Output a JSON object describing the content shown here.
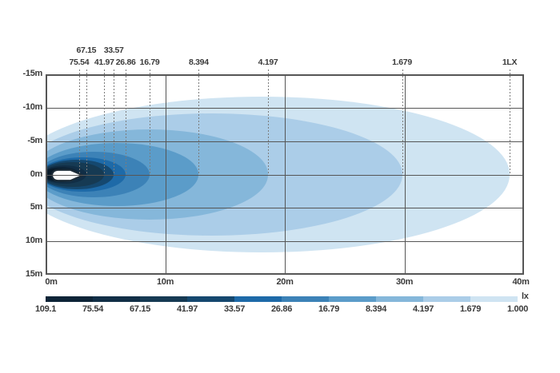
{
  "chart_data": {
    "type": "area",
    "subtype": "isolux-beam-pattern",
    "unit": "lx",
    "x_range_m": [
      0,
      40
    ],
    "y_range_m": [
      -15,
      15
    ],
    "x_tick_labels": [
      "0m",
      "10m",
      "20m",
      "30m",
      "40m"
    ],
    "y_tick_labels": [
      "-15m",
      "-10m",
      "-5m",
      "0m",
      "5m",
      "10m",
      "15m"
    ],
    "max_lux": "109.1",
    "contours_lux_to_reach_m": {
      "75.54": 2.8,
      "67.15": 3.4,
      "41.97": 4.9,
      "33.57": 5.7,
      "26.86": 6.7,
      "16.79": 8.7,
      "8.394": 12.8,
      "4.197": 18.6,
      "1.679": 29.8,
      "1.000": 38.8
    },
    "legend_values": [
      "109.1",
      "75.54",
      "67.15",
      "41.97",
      "33.57",
      "26.86",
      "16.79",
      "8.394",
      "4.197",
      "1.679",
      "1.000"
    ],
    "legend_position": "bottom",
    "grid": true
  },
  "chart": {
    "lamp_icon": "lamp-top-view-icon",
    "x_axis": {
      "ticks": [
        {
          "label": "0m",
          "m": 0
        },
        {
          "label": "10m",
          "m": 10
        },
        {
          "label": "20m",
          "m": 20
        },
        {
          "label": "30m",
          "m": 30
        },
        {
          "label": "40m",
          "m": 40
        }
      ]
    },
    "y_axis": {
      "ticks": [
        {
          "label": "-15m",
          "m": -15
        },
        {
          "label": "-10m",
          "m": -10
        },
        {
          "label": "-5m",
          "m": -5
        },
        {
          "label": "0m",
          "m": 0
        },
        {
          "label": "5m",
          "m": 5
        },
        {
          "label": "10m",
          "m": 10
        },
        {
          "label": "15m",
          "m": 15
        }
      ]
    },
    "grid": {
      "v_m": [
        10,
        20,
        30
      ],
      "h_m": [
        -10,
        -5,
        0,
        5,
        10
      ]
    },
    "markers": [
      {
        "label": "75.54",
        "row": 2,
        "distance_m": 2.8
      },
      {
        "label": "67.15",
        "row": 1,
        "distance_m": 3.4
      },
      {
        "label": "41.97",
        "row": 2,
        "distance_m": 4.9
      },
      {
        "label": "33.57",
        "row": 1,
        "distance_m": 5.7
      },
      {
        "label": "26.86",
        "row": 2,
        "distance_m": 6.7
      },
      {
        "label": "16.79",
        "row": 2,
        "distance_m": 8.7
      },
      {
        "label": "8.394",
        "row": 2,
        "distance_m": 12.8
      },
      {
        "label": "4.197",
        "row": 2,
        "distance_m": 18.6
      },
      {
        "label": "1.679",
        "row": 2,
        "distance_m": 29.8
      },
      {
        "label": "1LX",
        "row": 2,
        "distance_m": 38.8
      }
    ],
    "bands": [
      {
        "lux": "1.000",
        "color": "#cfe4f2",
        "reach_m": 38.8,
        "half_width_m": 11.6,
        "tail_m": -2.7
      },
      {
        "lux": "1.679",
        "color": "#abcde8",
        "reach_m": 29.8,
        "half_width_m": 9.1,
        "tail_m": -2.1
      },
      {
        "lux": "4.197",
        "color": "#85b7da",
        "reach_m": 18.6,
        "half_width_m": 6.7,
        "tail_m": -1.3
      },
      {
        "lux": "8.394",
        "color": "#5b9cc9",
        "reach_m": 12.8,
        "half_width_m": 4.7,
        "tail_m": -0.9
      },
      {
        "lux": "16.79",
        "color": "#3c82b7",
        "reach_m": 8.7,
        "half_width_m": 3.4,
        "tail_m": -0.6
      },
      {
        "lux": "26.86",
        "color": "#1e6aa8",
        "reach_m": 6.7,
        "half_width_m": 2.6,
        "tail_m": -0.5
      },
      {
        "lux": "33.57",
        "color": "#15486f",
        "reach_m": 5.7,
        "half_width_m": 2.2,
        "tail_m": -0.4
      },
      {
        "lux": "41.97",
        "color": "#163a53",
        "reach_m": 4.9,
        "half_width_m": 1.8,
        "tail_m": -0.33
      },
      {
        "lux": "67.15",
        "color": "#112e46",
        "reach_m": 3.4,
        "half_width_m": 1.4,
        "tail_m": -0.27
      },
      {
        "lux": "75.54",
        "color": "#0d2437",
        "reach_m": 2.8,
        "half_width_m": 1.15,
        "tail_m": -0.2
      },
      {
        "lux": "109.1",
        "color": "#0a1b29",
        "reach_m": 2.1,
        "half_width_m": 0.9,
        "tail_m": -0.15
      }
    ],
    "legend": {
      "unit_label": "lx",
      "values": [
        "109.1",
        "75.54",
        "67.15",
        "41.97",
        "33.57",
        "26.86",
        "16.79",
        "8.394",
        "4.197",
        "1.679",
        "1.000"
      ],
      "segment_colors": [
        "#0d2437",
        "#112e46",
        "#163a53",
        "#15486f",
        "#1e6aa8",
        "#3c82b7",
        "#5b9cc9",
        "#85b7da",
        "#abcde8",
        "#cfe4f2"
      ]
    },
    "colors": {
      "grid": "#565656",
      "dash": "#7c7c7c",
      "text": "#3a3a3a",
      "lamp_outline": "#1d2c38"
    }
  }
}
